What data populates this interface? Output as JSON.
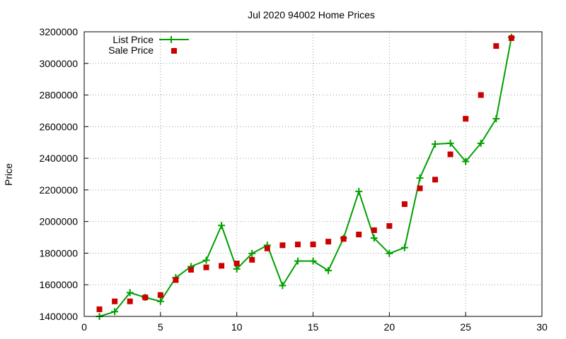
{
  "chart_data": {
    "type": "line",
    "title": "Jul 2020 94002 Home Prices",
    "xlabel": "",
    "ylabel": "Price",
    "xlim": [
      0,
      30
    ],
    "ylim": [
      1400000,
      3200000
    ],
    "xticks": [
      0,
      5,
      10,
      15,
      20,
      25,
      30
    ],
    "yticks": [
      1400000,
      1600000,
      1800000,
      2000000,
      2200000,
      2400000,
      2600000,
      2800000,
      3000000,
      3200000
    ],
    "grid": true,
    "legend": "top-left",
    "x": [
      1,
      2,
      3,
      4,
      5,
      6,
      7,
      8,
      9,
      10,
      11,
      12,
      13,
      14,
      15,
      16,
      17,
      18,
      19,
      20,
      21,
      22,
      23,
      24,
      25,
      26,
      27,
      28
    ],
    "series": [
      {
        "name": "List Price",
        "style": "linespoints",
        "color": "#00a000",
        "values": [
          1400000,
          1430000,
          1550000,
          1520000,
          1495000,
          1645000,
          1715000,
          1755000,
          1975000,
          1700000,
          1798000,
          1850000,
          1595000,
          1750000,
          1750000,
          1690000,
          1895000,
          2190000,
          1895000,
          1798000,
          1835000,
          2275000,
          2490000,
          2495000,
          2380000,
          2495000,
          2650000,
          3165000
        ]
      },
      {
        "name": "Sale Price",
        "style": "points",
        "color": "#cc0000",
        "values": [
          1445000,
          1495000,
          1495000,
          1520000,
          1535000,
          1630000,
          1695000,
          1710000,
          1720000,
          1735000,
          1758000,
          1830000,
          1850000,
          1855000,
          1855000,
          1873000,
          1890000,
          1918000,
          1945000,
          1972000,
          2110000,
          2210000,
          2265000,
          2425000,
          2650000,
          2800000,
          3110000,
          3160000
        ]
      }
    ]
  }
}
